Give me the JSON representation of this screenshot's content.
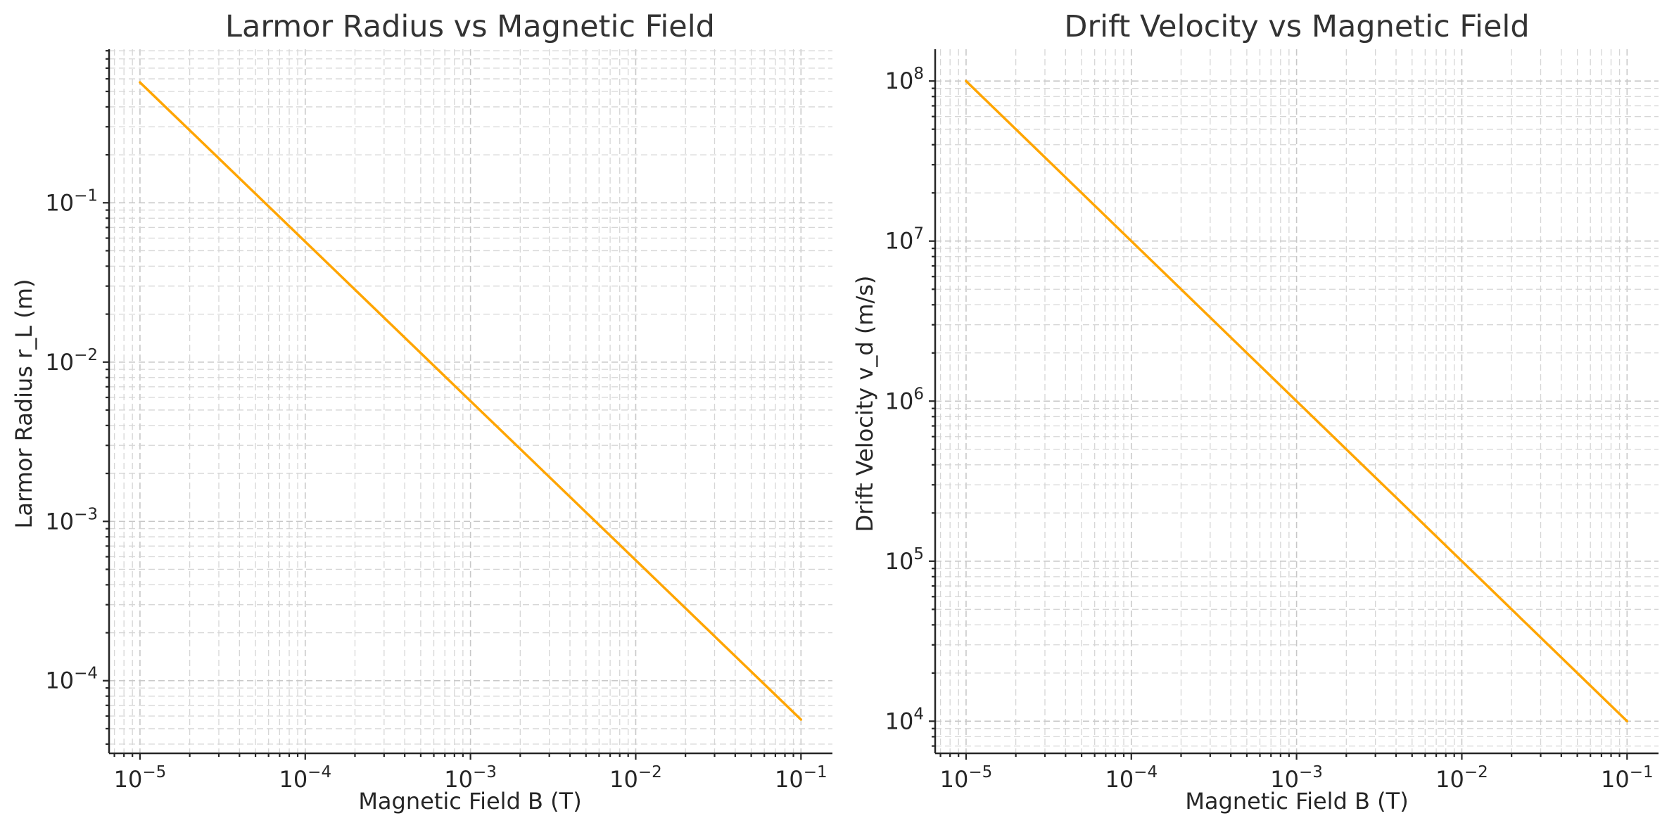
{
  "chart_data": [
    {
      "type": "line",
      "title": "Larmor Radius vs Magnetic Field",
      "xlabel": "Magnetic Field B (T)",
      "ylabel": "Larmor Radius r_L (m)",
      "xscale": "log",
      "yscale": "log",
      "xlim": [
        6.5e-06,
        0.155
      ],
      "ylim": [
        3.5e-05,
        0.92
      ],
      "grid": true,
      "grid_minor": true,
      "legend": "none",
      "x_ticks": [
        {
          "value": 1e-05,
          "base": "10",
          "exp": "−5"
        },
        {
          "value": 0.0001,
          "base": "10",
          "exp": "−4"
        },
        {
          "value": 0.001,
          "base": "10",
          "exp": "−3"
        },
        {
          "value": 0.01,
          "base": "10",
          "exp": "−2"
        },
        {
          "value": 0.1,
          "base": "10",
          "exp": "−1"
        }
      ],
      "y_ticks": [
        {
          "value": 0.0001,
          "base": "10",
          "exp": "−4"
        },
        {
          "value": 0.001,
          "base": "10",
          "exp": "−3"
        },
        {
          "value": 0.01,
          "base": "10",
          "exp": "−2"
        },
        {
          "value": 0.1,
          "base": "10",
          "exp": "−1"
        }
      ],
      "series": [
        {
          "color": "#FFA500",
          "x": [
            1e-05,
            0.0001,
            0.001,
            0.01,
            0.1
          ],
          "y": [
            0.57,
            0.057,
            0.0057,
            0.00057,
            5.7e-05
          ]
        }
      ]
    },
    {
      "type": "line",
      "title": "Drift Velocity vs Magnetic Field",
      "xlabel": "Magnetic Field B (T)",
      "ylabel": "Drift Velocity v_d (m/s)",
      "xscale": "log",
      "yscale": "log",
      "xlim": [
        6.5e-06,
        0.155
      ],
      "ylim": [
        6300.0,
        158000000.0
      ],
      "grid": true,
      "grid_minor": true,
      "legend": "none",
      "x_ticks": [
        {
          "value": 1e-05,
          "base": "10",
          "exp": "−5"
        },
        {
          "value": 0.0001,
          "base": "10",
          "exp": "−4"
        },
        {
          "value": 0.001,
          "base": "10",
          "exp": "−3"
        },
        {
          "value": 0.01,
          "base": "10",
          "exp": "−2"
        },
        {
          "value": 0.1,
          "base": "10",
          "exp": "−1"
        }
      ],
      "y_ticks": [
        {
          "value": 10000.0,
          "base": "10",
          "exp": "4"
        },
        {
          "value": 100000.0,
          "base": "10",
          "exp": "5"
        },
        {
          "value": 1000000.0,
          "base": "10",
          "exp": "6"
        },
        {
          "value": 10000000.0,
          "base": "10",
          "exp": "7"
        },
        {
          "value": 100000000.0,
          "base": "10",
          "exp": "8"
        }
      ],
      "series": [
        {
          "color": "#FFA500",
          "x": [
            1e-05,
            0.0001,
            0.001,
            0.01,
            0.1
          ],
          "y": [
            100000000.0,
            10000000.0,
            1000000.0,
            100000.0,
            10000.0
          ]
        }
      ]
    }
  ]
}
